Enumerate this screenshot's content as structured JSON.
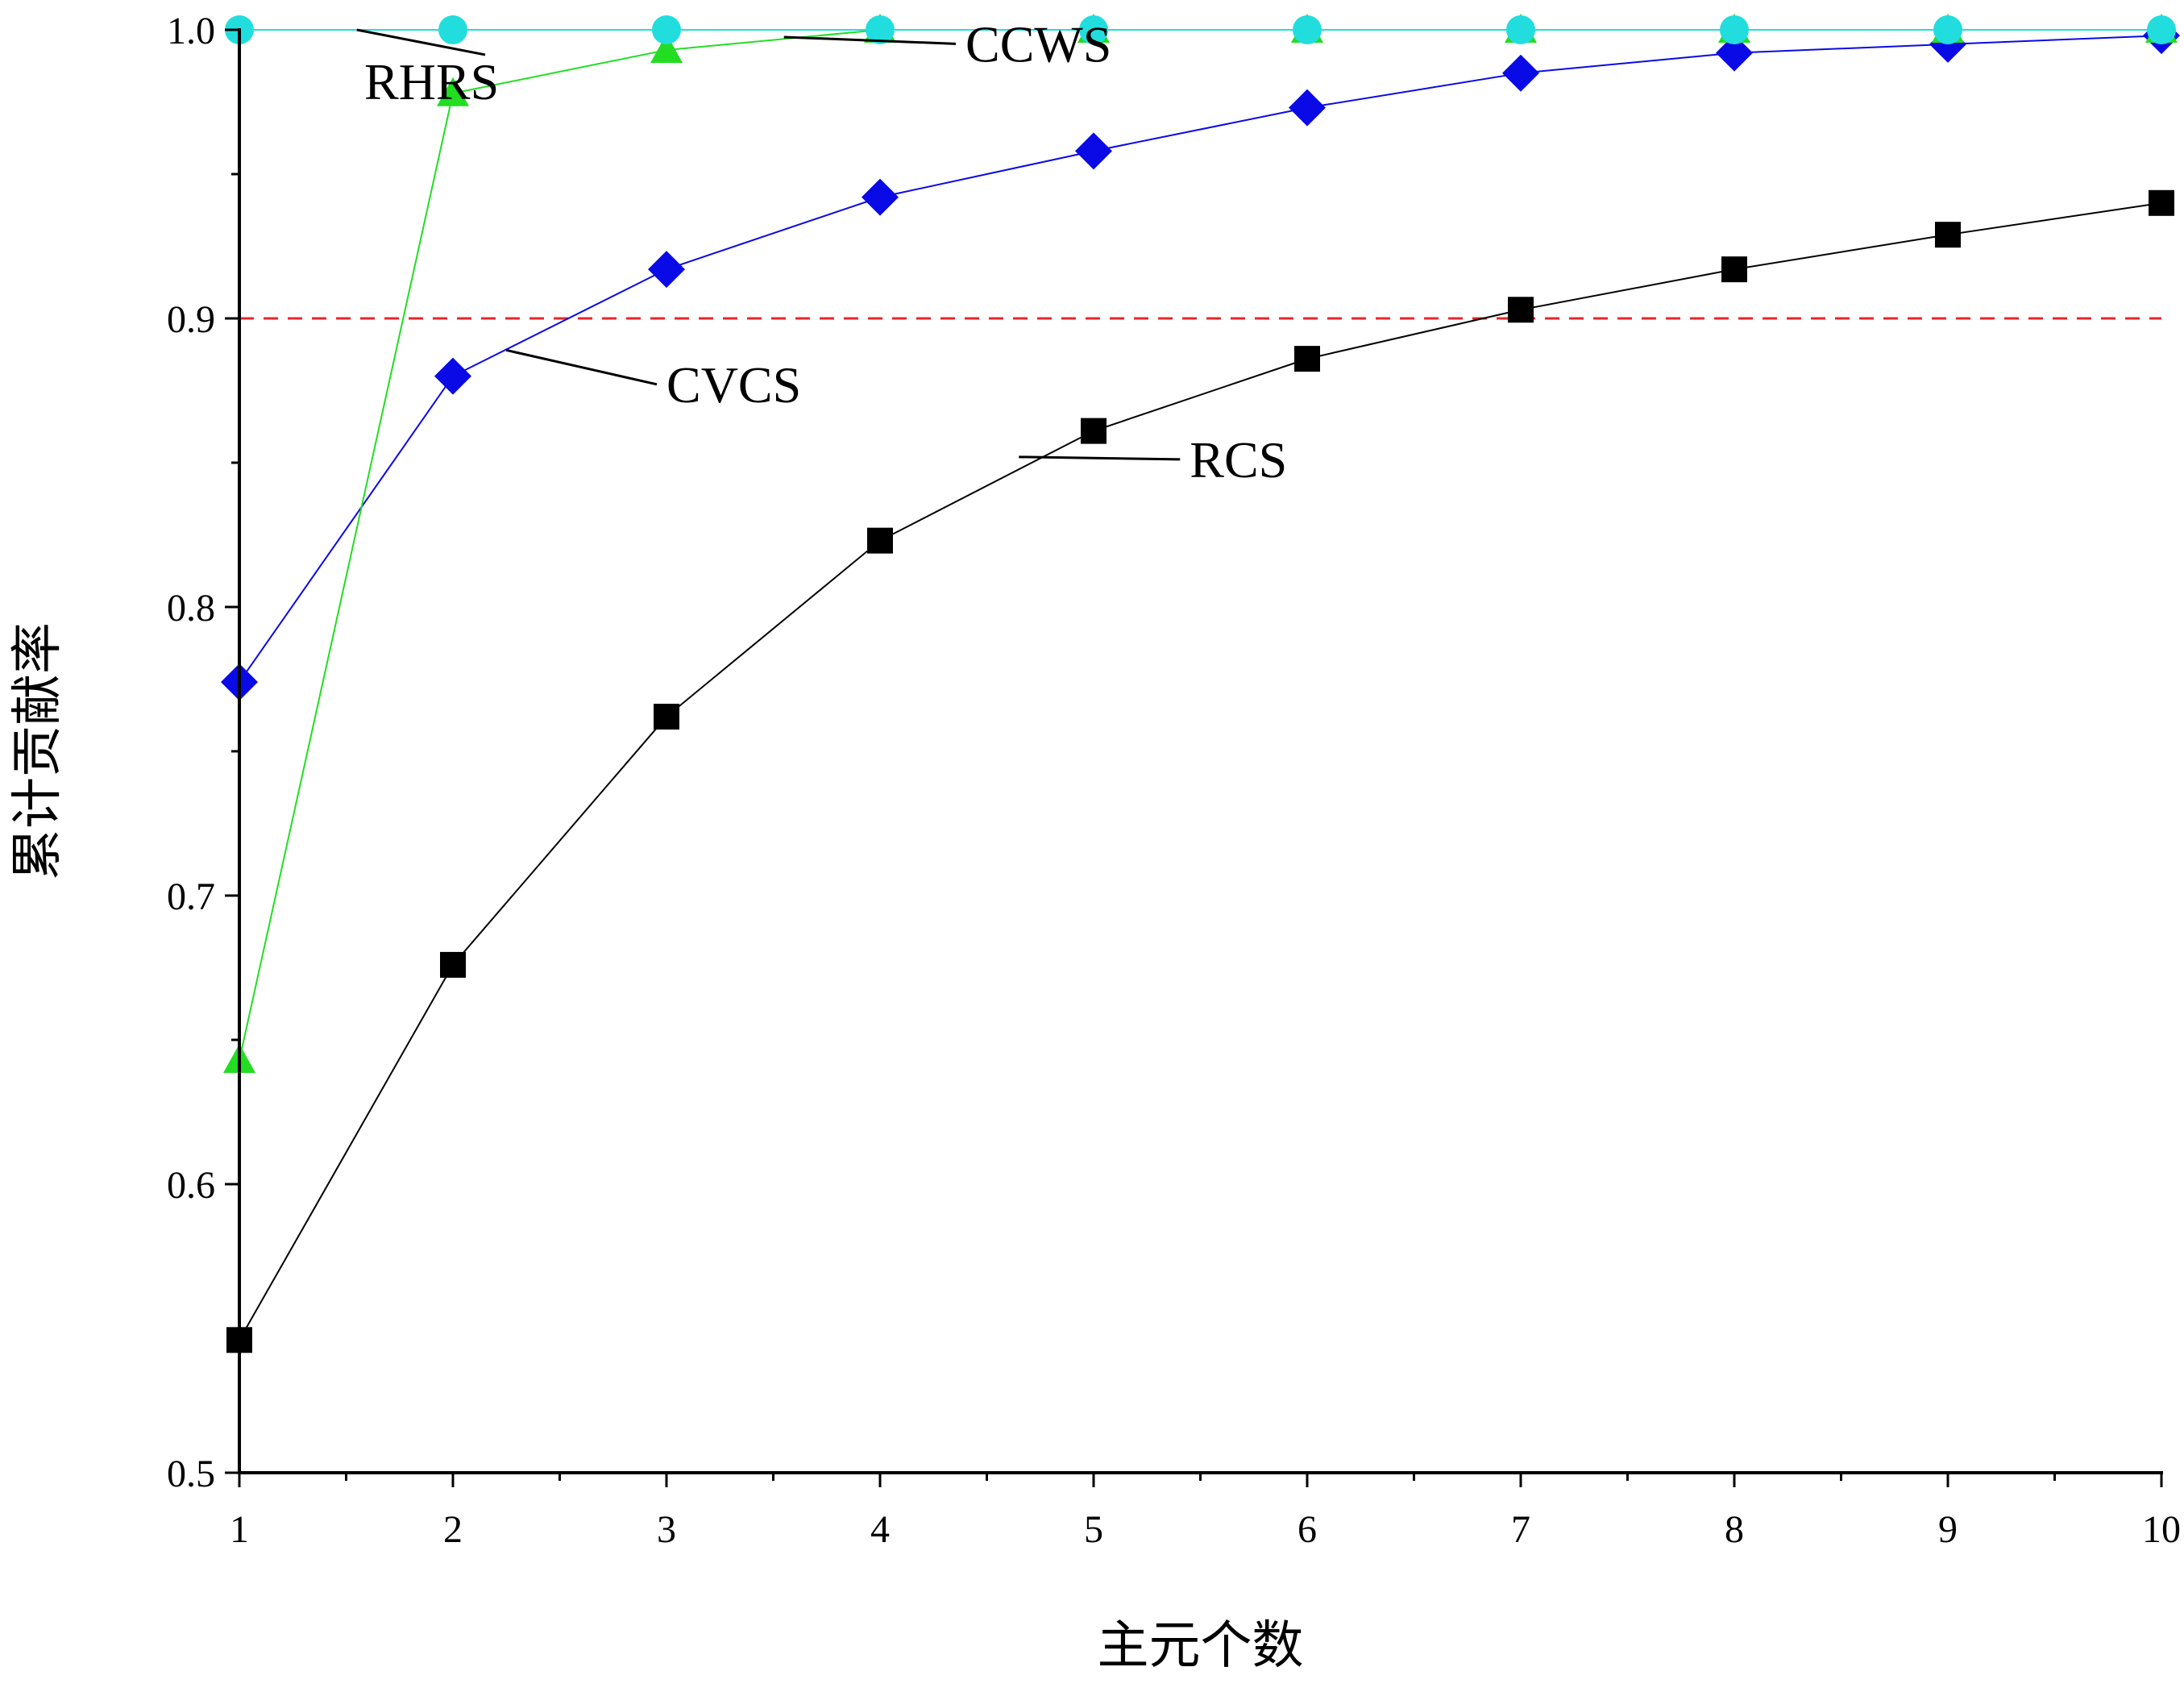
{
  "chart_data": {
    "type": "line",
    "title": "",
    "xlabel": "主元个数",
    "ylabel": "累计贡献率",
    "xlim": [
      1,
      10
    ],
    "ylim": [
      0.5,
      1.0
    ],
    "x": [
      1,
      2,
      3,
      4,
      5,
      6,
      7,
      8,
      9,
      10
    ],
    "x_ticks": [
      "1",
      "2",
      "3",
      "4",
      "5",
      "6",
      "7",
      "8",
      "9",
      "10"
    ],
    "y_ticks": [
      "0.5",
      "0.6",
      "0.7",
      "0.8",
      "0.9",
      "1.0"
    ],
    "y_tick_values": [
      0.5,
      0.6,
      0.7,
      0.8,
      0.9,
      1.0
    ],
    "reference_line": {
      "y": 0.9,
      "color": "#e8252a",
      "style": "dashed"
    },
    "series": [
      {
        "name": "RCS",
        "color": "#000000",
        "marker": "square",
        "values": [
          0.546,
          0.676,
          0.762,
          0.823,
          0.861,
          0.886,
          0.903,
          0.917,
          0.929,
          0.94
        ]
      },
      {
        "name": "CVCS",
        "color": "#0a0ae6",
        "marker": "diamond",
        "values": [
          0.774,
          0.88,
          0.917,
          0.942,
          0.958,
          0.973,
          0.985,
          0.992,
          0.995,
          0.998
        ]
      },
      {
        "name": "CCWS",
        "color": "#22dd22",
        "marker": "triangle",
        "values": [
          0.643,
          0.978,
          0.993,
          1.0,
          1.0,
          1.0,
          1.0,
          1.0,
          1.0,
          1.0
        ]
      },
      {
        "name": "RHRS",
        "color": "#22dddd",
        "marker": "circle",
        "values": [
          1.0,
          1.0,
          1.0,
          1.0,
          1.0,
          1.0,
          1.0,
          1.0,
          1.0,
          1.0
        ]
      }
    ],
    "annotations": [
      {
        "text": "RHRS",
        "series": "RHRS",
        "point_x": 1.55,
        "point_y": 1.0,
        "text_x": 2.0,
        "text_y": 0.976
      },
      {
        "text": "CCWS",
        "series": "CCWS",
        "point_x": 3.55,
        "point_y": 0.9975,
        "text_x": 4.4,
        "text_y": 0.989
      },
      {
        "text": "CVCS",
        "series": "CVCS",
        "point_x": 2.25,
        "point_y": 0.889,
        "text_x": 3.0,
        "text_y": 0.871
      },
      {
        "text": "RCS",
        "series": "RCS",
        "point_x": 4.65,
        "point_y": 0.852,
        "text_x": 5.45,
        "text_y": 0.845
      }
    ]
  }
}
